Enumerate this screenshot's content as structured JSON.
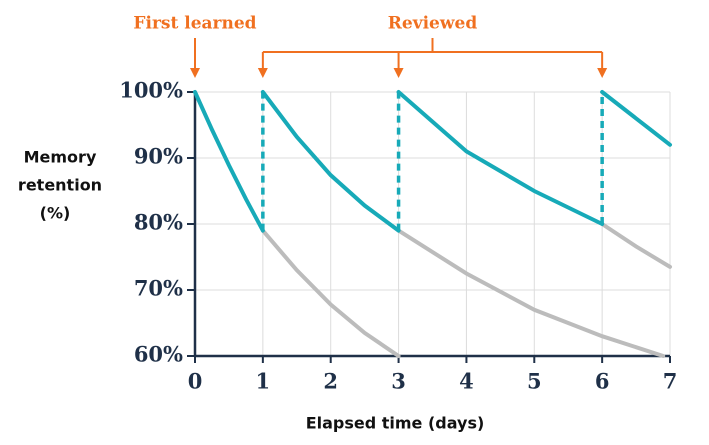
{
  "chart_data": {
    "type": "line",
    "annotations": [
      {
        "text": "First learned",
        "x": [
          0
        ]
      },
      {
        "text": "Reviewed",
        "x": [
          1,
          3,
          6
        ]
      }
    ],
    "y_label": [
      "Memory",
      "retention",
      "(%)"
    ],
    "x_label": "Elapsed time (days)",
    "xlim": [
      0,
      7
    ],
    "ylim": [
      60,
      100
    ],
    "xticks": [
      0,
      1,
      2,
      3,
      4,
      5,
      6,
      7
    ],
    "yticks": [
      {
        "value": 60,
        "label": "60%"
      },
      {
        "value": 70,
        "label": "70%"
      },
      {
        "value": 80,
        "label": "80%"
      },
      {
        "value": 90,
        "label": "90%"
      },
      {
        "value": 100,
        "label": "100%"
      }
    ],
    "grid": true,
    "series": [
      {
        "color": "#bcbcbc",
        "x": [
          1,
          1.5,
          2,
          2.5,
          3,
          null,
          3,
          4,
          5,
          6,
          6.9,
          null,
          6,
          6.5,
          7
        ],
        "values": [
          79,
          73,
          67.8,
          63.5,
          60,
          null,
          79,
          72.5,
          67,
          63,
          60,
          null,
          80,
          76.6,
          73.5
        ]
      },
      {
        "color": "#17aab8",
        "x": [
          0,
          0.25,
          0.5,
          0.75,
          1,
          null,
          1,
          1.5,
          2,
          2.5,
          3,
          null,
          3,
          4,
          5,
          6,
          null,
          6,
          6.5,
          7
        ],
        "values": [
          100,
          94.3,
          88.9,
          83.8,
          79,
          null,
          100,
          93.2,
          87.4,
          82.8,
          79,
          null,
          100,
          91,
          85,
          80,
          null,
          100,
          96,
          92
        ]
      },
      {
        "color": "#17aab8",
        "dashed": true,
        "x": [
          1,
          1,
          null,
          3,
          3,
          null,
          6,
          6
        ],
        "values": [
          79,
          100,
          null,
          79,
          100,
          null,
          80,
          100
        ]
      }
    ]
  }
}
